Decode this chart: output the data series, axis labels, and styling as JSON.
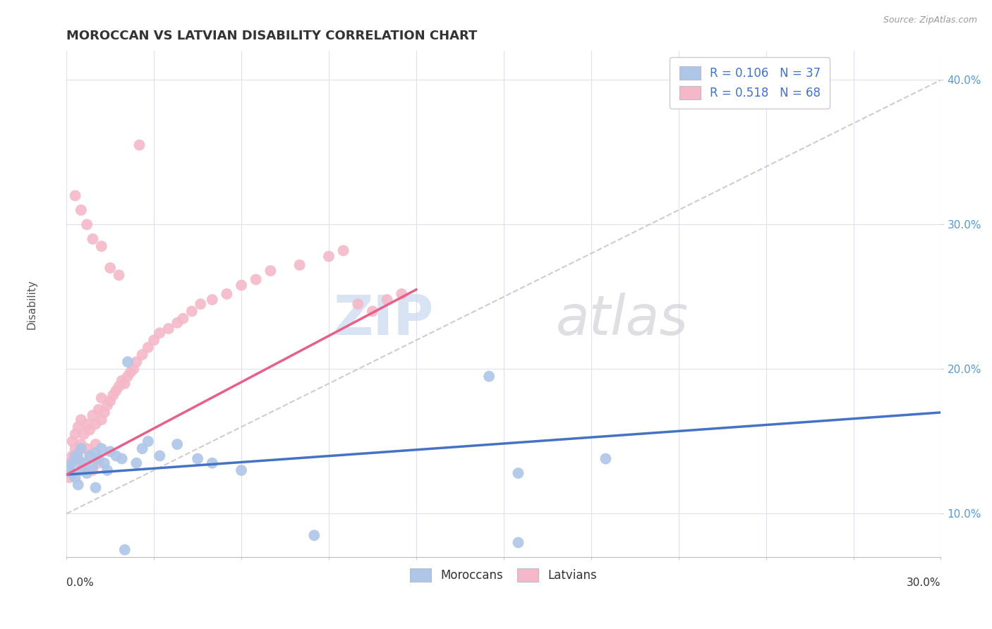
{
  "title": "MOROCCAN VS LATVIAN DISABILITY CORRELATION CHART",
  "source": "Source: ZipAtlas.com",
  "ylabel": "Disability",
  "xlim": [
    0.0,
    0.3
  ],
  "ylim": [
    0.07,
    0.42
  ],
  "yticks": [
    0.1,
    0.2,
    0.3,
    0.4
  ],
  "ytick_labels": [
    "10.0%",
    "20.0%",
    "30.0%",
    "40.0%"
  ],
  "xticks": [
    0.0,
    0.03,
    0.06,
    0.09,
    0.12,
    0.15,
    0.18,
    0.21,
    0.24,
    0.27,
    0.3
  ],
  "legend_r1": "R = 0.106",
  "legend_n1": "N = 37",
  "legend_r2": "R = 0.518",
  "legend_n2": "N = 68",
  "moroccan_color": "#aec6e8",
  "latvian_color": "#f4b8c8",
  "moroccan_line_color": "#4472c4",
  "latvian_line_color": "#e8608a",
  "ref_line_color": "#c8c8c8",
  "background_color": "#ffffff",
  "moroccan_line": [
    0.0,
    0.127,
    0.3,
    0.17
  ],
  "latvian_line": [
    0.0,
    0.127,
    0.12,
    0.255
  ],
  "ref_line": [
    0.0,
    0.1,
    0.3,
    0.4
  ],
  "moroccan_dots_x": [
    0.001,
    0.002,
    0.002,
    0.003,
    0.003,
    0.004,
    0.004,
    0.005,
    0.005,
    0.006,
    0.007,
    0.008,
    0.009,
    0.01,
    0.01,
    0.011,
    0.012,
    0.013,
    0.014,
    0.015,
    0.017,
    0.019,
    0.021,
    0.024,
    0.026,
    0.028,
    0.032,
    0.038,
    0.045,
    0.05,
    0.06,
    0.145,
    0.155,
    0.185,
    0.155,
    0.085,
    0.02
  ],
  "moroccan_dots_y": [
    0.132,
    0.135,
    0.128,
    0.14,
    0.125,
    0.138,
    0.12,
    0.13,
    0.145,
    0.135,
    0.128,
    0.14,
    0.133,
    0.142,
    0.118,
    0.138,
    0.145,
    0.135,
    0.13,
    0.143,
    0.14,
    0.138,
    0.205,
    0.135,
    0.145,
    0.15,
    0.14,
    0.148,
    0.138,
    0.135,
    0.13,
    0.195,
    0.128,
    0.138,
    0.08,
    0.085,
    0.075
  ],
  "latvian_dots_x": [
    0.001,
    0.001,
    0.002,
    0.002,
    0.002,
    0.003,
    0.003,
    0.003,
    0.004,
    0.004,
    0.005,
    0.005,
    0.005,
    0.006,
    0.006,
    0.007,
    0.007,
    0.008,
    0.008,
    0.009,
    0.009,
    0.01,
    0.01,
    0.011,
    0.011,
    0.012,
    0.012,
    0.013,
    0.014,
    0.015,
    0.016,
    0.017,
    0.018,
    0.019,
    0.02,
    0.021,
    0.022,
    0.023,
    0.024,
    0.026,
    0.028,
    0.03,
    0.032,
    0.035,
    0.038,
    0.04,
    0.043,
    0.046,
    0.05,
    0.055,
    0.06,
    0.065,
    0.07,
    0.08,
    0.09,
    0.095,
    0.1,
    0.105,
    0.11,
    0.115,
    0.003,
    0.005,
    0.007,
    0.009,
    0.012,
    0.015,
    0.018,
    0.025
  ],
  "latvian_dots_y": [
    0.125,
    0.135,
    0.14,
    0.128,
    0.15,
    0.145,
    0.138,
    0.155,
    0.142,
    0.16,
    0.148,
    0.135,
    0.165,
    0.155,
    0.13,
    0.162,
    0.145,
    0.158,
    0.14,
    0.168,
    0.13,
    0.162,
    0.148,
    0.172,
    0.135,
    0.165,
    0.18,
    0.17,
    0.175,
    0.178,
    0.182,
    0.185,
    0.188,
    0.192,
    0.19,
    0.195,
    0.198,
    0.2,
    0.205,
    0.21,
    0.215,
    0.22,
    0.225,
    0.228,
    0.232,
    0.235,
    0.24,
    0.245,
    0.248,
    0.252,
    0.258,
    0.262,
    0.268,
    0.272,
    0.278,
    0.282,
    0.245,
    0.24,
    0.248,
    0.252,
    0.32,
    0.31,
    0.3,
    0.29,
    0.285,
    0.27,
    0.265,
    0.355
  ]
}
